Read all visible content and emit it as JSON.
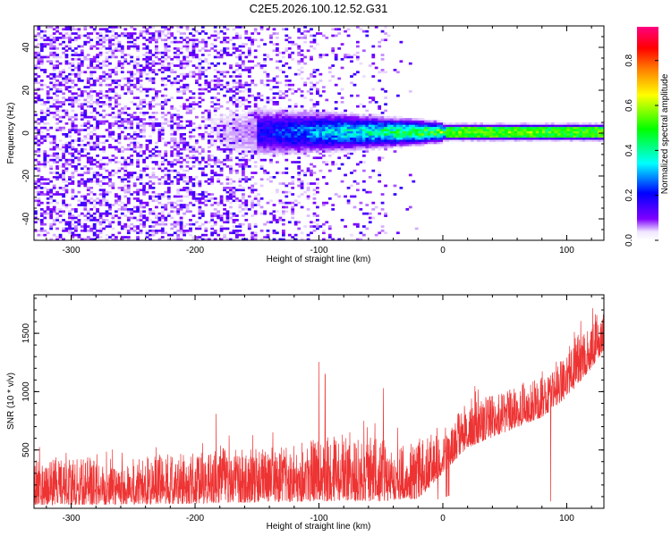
{
  "title": "C2E5.2026.100.12.52.G31",
  "chart_data": [
    {
      "type": "heatmap",
      "xlabel": "Height of straight line (km)",
      "ylabel": "Frequency (Hz)",
      "xlim": [
        -330,
        130
      ],
      "ylim": [
        -50,
        50
      ],
      "xticks": [
        -300,
        -200,
        -100,
        0,
        100
      ],
      "yticks": [
        -40,
        -20,
        0,
        20,
        40
      ],
      "colorbar": {
        "label": "Normalized spectral amplitude",
        "range": [
          0,
          0.95
        ],
        "ticks": [
          0.0,
          0.2,
          0.4,
          0.6,
          0.8
        ],
        "colormap": [
          "#ffffff",
          "#e9d8ff",
          "#8000ff",
          "#0000ff",
          "#00ffff",
          "#00ff00",
          "#ffff00",
          "#ff8000",
          "#ff0000",
          "#ff0080"
        ]
      },
      "signal_band": {
        "center_hz": 0,
        "onset_height_km": -150,
        "amplitude_near_zero_height": 0.55,
        "amplitude_above_zero_height": 0.5
      }
    },
    {
      "type": "line",
      "xlabel": "Height of straight line (km)",
      "ylabel": "SNR (10 * v/v)",
      "xlim": [
        -330,
        130
      ],
      "ylim": [
        0,
        1830
      ],
      "xticks": [
        -300,
        -200,
        -100,
        0,
        100
      ],
      "yticks": [
        500,
        1000,
        1500
      ],
      "color": "#ee3333",
      "series_profile": {
        "x": [
          -330,
          -250,
          -200,
          -150,
          -100,
          -50,
          -20,
          0,
          20,
          50,
          80,
          100,
          120,
          130
        ],
        "baseline": [
          30,
          30,
          40,
          50,
          60,
          60,
          80,
          300,
          520,
          650,
          780,
          950,
          1200,
          1350
        ],
        "peak": [
          420,
          430,
          490,
          520,
          620,
          600,
          560,
          700,
          920,
          1000,
          1130,
          1360,
          1650,
          1700
        ]
      },
      "notable_spikes": [
        {
          "x": -183,
          "y": 810
        },
        {
          "x": -100,
          "y": 1255
        },
        {
          "x": -95,
          "y": 1150
        },
        {
          "x": -48,
          "y": 1030
        },
        {
          "x": 87,
          "y": 60
        }
      ]
    }
  ]
}
